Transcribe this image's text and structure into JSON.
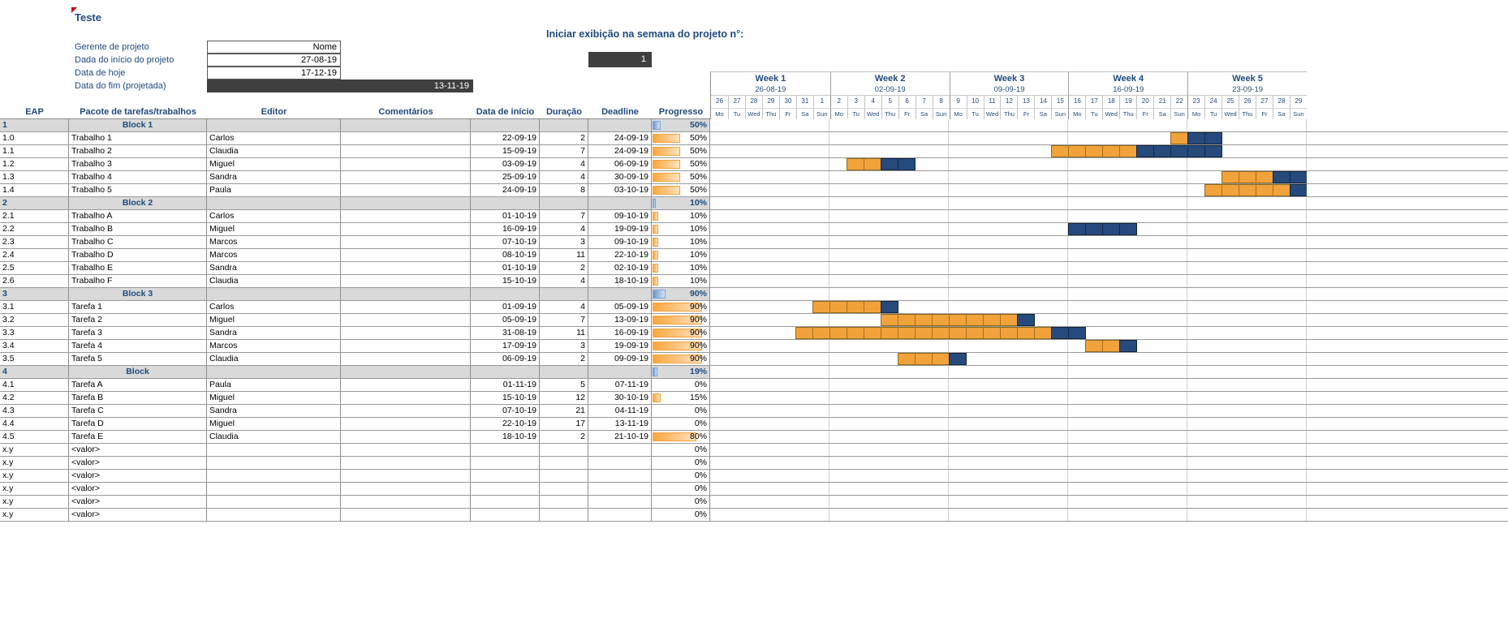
{
  "title": "Teste",
  "form": {
    "rows": [
      {
        "label": "Gerente de projeto",
        "value": "Nome"
      },
      {
        "label": "Dada do início do projeto",
        "value": "27-08-19"
      },
      {
        "label": "Data de hoje",
        "value": "17-12-19"
      },
      {
        "label": "Data do fim (projetada)",
        "value": "13-11-19"
      }
    ]
  },
  "week_control": {
    "label": "Iniciar exibição na semana do projeto n°:",
    "value": "1"
  },
  "columns": [
    "EAP",
    "Pacote de tarefas/trabalhos",
    "Editor",
    "Comentários",
    "Data de início",
    "Duração",
    "Deadline",
    "Progresso"
  ],
  "gantt": {
    "weeks": [
      {
        "label": "Week 1",
        "date": "26-08-19"
      },
      {
        "label": "Week 2",
        "date": "02-09-19"
      },
      {
        "label": "Week 3",
        "date": "09-09-19"
      },
      {
        "label": "Week 4",
        "date": "16-09-19"
      },
      {
        "label": "Week 5",
        "date": "23-09-19"
      }
    ],
    "day_numbers": [
      26,
      27,
      28,
      29,
      30,
      31,
      1,
      2,
      3,
      4,
      5,
      6,
      7,
      8,
      9,
      10,
      11,
      12,
      13,
      14,
      15,
      16,
      17,
      18,
      19,
      20,
      21,
      22,
      23,
      24,
      25,
      26,
      27,
      28,
      29
    ],
    "day_names": [
      "Mo",
      "Tu",
      "Wed",
      "Thu",
      "Fr",
      "Sa",
      "Sun",
      "Mo",
      "Tu",
      "Wed",
      "Thu",
      "Fr",
      "Sa",
      "Sun",
      "Mo",
      "Tu",
      "Wed",
      "Thu",
      "Fr",
      "Sa",
      "Sun",
      "Mo",
      "Tu",
      "Wed",
      "Thu",
      "Fr",
      "Sa",
      "Sun",
      "Mo",
      "Tu",
      "Wed",
      "Thu",
      "Fr",
      "Sa",
      "Sun"
    ]
  },
  "rows": [
    {
      "type": "block",
      "eap": "1",
      "task": "Block 1",
      "progress": "50%",
      "pct": 50
    },
    {
      "type": "task",
      "eap": "1.0",
      "task": "Trabalho 1",
      "editor": "Carlos",
      "comment": "",
      "start": "22-09-19",
      "duration": "2",
      "deadline": "24-09-19",
      "progress": "50%",
      "pct": 50,
      "bar": {
        "start": 27,
        "orange": 1,
        "blue": 2
      }
    },
    {
      "type": "task",
      "eap": "1.1",
      "task": "Trabalho 2",
      "editor": "Claudia",
      "comment": "",
      "start": "15-09-19",
      "duration": "7",
      "deadline": "24-09-19",
      "progress": "50%",
      "pct": 50,
      "bar": {
        "start": 20,
        "orange": 5,
        "blue": 5
      }
    },
    {
      "type": "task",
      "eap": "1.2",
      "task": "Trabalho 3",
      "editor": "Miguel",
      "comment": "",
      "start": "03-09-19",
      "duration": "4",
      "deadline": "06-09-19",
      "progress": "50%",
      "pct": 50,
      "bar": {
        "start": 8,
        "orange": 2,
        "blue": 2
      }
    },
    {
      "type": "task",
      "eap": "1.3",
      "task": "Trabalho 4",
      "editor": "Sandra",
      "comment": "",
      "start": "25-09-19",
      "duration": "4",
      "deadline": "30-09-19",
      "progress": "50%",
      "pct": 50,
      "bar": {
        "start": 30,
        "orange": 3,
        "blue": 3
      }
    },
    {
      "type": "task",
      "eap": "1.4",
      "task": "Trabalho 5",
      "editor": "Paula",
      "comment": "",
      "start": "24-09-19",
      "duration": "8",
      "deadline": "03-10-19",
      "progress": "50%",
      "pct": 50,
      "bar": {
        "start": 29,
        "orange": 5,
        "blue": 5
      }
    },
    {
      "type": "block",
      "eap": "2",
      "task": "Block 2",
      "progress": "10%",
      "pct": 10
    },
    {
      "type": "task",
      "eap": "2.1",
      "task": "Trabalho A",
      "editor": "Carlos",
      "comment": "",
      "start": "01-10-19",
      "duration": "7",
      "deadline": "09-10-19",
      "progress": "10%",
      "pct": 10,
      "bar": {
        "start": 36,
        "orange": 0,
        "blue": 9
      }
    },
    {
      "type": "task",
      "eap": "2.2",
      "task": "Trabalho B",
      "editor": "Miguel",
      "comment": "",
      "start": "16-09-19",
      "duration": "4",
      "deadline": "19-09-19",
      "progress": "10%",
      "pct": 10,
      "bar": {
        "start": 21,
        "orange": 0,
        "blue": 4
      }
    },
    {
      "type": "task",
      "eap": "2.3",
      "task": "Trabalho C",
      "editor": "Marcos",
      "comment": "",
      "start": "07-10-19",
      "duration": "3",
      "deadline": "09-10-19",
      "progress": "10%",
      "pct": 10,
      "bar": {
        "start": 42,
        "orange": 0,
        "blue": 3
      }
    },
    {
      "type": "task",
      "eap": "2.4",
      "task": "Trabalho D",
      "editor": "Marcos",
      "comment": "",
      "start": "08-10-19",
      "duration": "11",
      "deadline": "22-10-19",
      "progress": "10%",
      "pct": 10,
      "bar": {
        "start": 43,
        "orange": 1,
        "blue": 14
      }
    },
    {
      "type": "task",
      "eap": "2.5",
      "task": "Trabalho E",
      "editor": "Sandra",
      "comment": "",
      "start": "01-10-19",
      "duration": "2",
      "deadline": "02-10-19",
      "progress": "10%",
      "pct": 10,
      "bar": {
        "start": 36,
        "orange": 0,
        "blue": 2
      }
    },
    {
      "type": "task",
      "eap": "2.6",
      "task": "Trabalho F",
      "editor": "Claudia",
      "comment": "",
      "start": "15-10-19",
      "duration": "4",
      "deadline": "18-10-19",
      "progress": "10%",
      "pct": 10,
      "bar": {
        "start": 50,
        "orange": 0,
        "blue": 4
      }
    },
    {
      "type": "block",
      "eap": "3",
      "task": "Block 3",
      "progress": "90%",
      "pct": 90
    },
    {
      "type": "task",
      "eap": "3.1",
      "task": "Tarefa 1",
      "editor": "Carlos",
      "comment": "",
      "start": "01-09-19",
      "duration": "4",
      "deadline": "05-09-19",
      "progress": "90%",
      "pct": 90,
      "bar": {
        "start": 6,
        "orange": 4,
        "blue": 1
      }
    },
    {
      "type": "task",
      "eap": "3.2",
      "task": "Tarefa 2",
      "editor": "Miguel",
      "comment": "",
      "start": "05-09-19",
      "duration": "7",
      "deadline": "13-09-19",
      "progress": "90%",
      "pct": 90,
      "bar": {
        "start": 10,
        "orange": 8,
        "blue": 1
      }
    },
    {
      "type": "task",
      "eap": "3.3",
      "task": "Tarefa 3",
      "editor": "Sandra",
      "comment": "",
      "start": "31-08-19",
      "duration": "11",
      "deadline": "16-09-19",
      "progress": "90%",
      "pct": 90,
      "bar": {
        "start": 5,
        "orange": 15,
        "blue": 2
      }
    },
    {
      "type": "task",
      "eap": "3.4",
      "task": "Tarefa 4",
      "editor": "Marcos",
      "comment": "",
      "start": "17-09-19",
      "duration": "3",
      "deadline": "19-09-19",
      "progress": "90%",
      "pct": 90,
      "bar": {
        "start": 22,
        "orange": 2,
        "blue": 1
      }
    },
    {
      "type": "task",
      "eap": "3.5",
      "task": "Tarefa 5",
      "editor": "Claudia",
      "comment": "",
      "start": "06-09-19",
      "duration": "2",
      "deadline": "09-09-19",
      "progress": "90%",
      "pct": 90,
      "bar": {
        "start": 11,
        "orange": 3,
        "blue": 1
      }
    },
    {
      "type": "block",
      "eap": "4",
      "task": "Block",
      "progress": "19%",
      "pct": 19
    },
    {
      "type": "task",
      "eap": "4.1",
      "task": "Tarefa A",
      "editor": "Paula",
      "comment": "",
      "start": "01-11-19",
      "duration": "5",
      "deadline": "07-11-19",
      "progress": "0%",
      "pct": 0,
      "bar": {
        "start": 67,
        "orange": 0,
        "blue": 7
      }
    },
    {
      "type": "task",
      "eap": "4.2",
      "task": "Tarefa B",
      "editor": "Miguel",
      "comment": "",
      "start": "15-10-19",
      "duration": "12",
      "deadline": "30-10-19",
      "progress": "15%",
      "pct": 15,
      "bar": {
        "start": 50,
        "orange": 2,
        "blue": 14
      }
    },
    {
      "type": "task",
      "eap": "4.3",
      "task": "Tarefa C",
      "editor": "Sandra",
      "comment": "",
      "start": "07-10-19",
      "duration": "21",
      "deadline": "04-11-19",
      "progress": "0%",
      "pct": 0,
      "bar": {
        "start": 42,
        "orange": 0,
        "blue": 29
      }
    },
    {
      "type": "task",
      "eap": "4.4",
      "task": "Tarefa D",
      "editor": "Miguel",
      "comment": "",
      "start": "22-10-19",
      "duration": "17",
      "deadline": "13-11-19",
      "progress": "0%",
      "pct": 0,
      "bar": {
        "start": 57,
        "orange": 0,
        "blue": 23
      }
    },
    {
      "type": "task",
      "eap": "4.5",
      "task": "Tarefa E",
      "editor": "Claudia",
      "comment": "",
      "start": "18-10-19",
      "duration": "2",
      "deadline": "21-10-19",
      "progress": "80%",
      "pct": 80,
      "bar": {
        "start": 53,
        "orange": 3,
        "blue": 1
      }
    },
    {
      "type": "empty",
      "eap": "x.y",
      "task": "<valor>",
      "progress": "0%",
      "pct": 0
    },
    {
      "type": "empty",
      "eap": "x.y",
      "task": "<valor>",
      "progress": "0%",
      "pct": 0
    },
    {
      "type": "empty",
      "eap": "x.y",
      "task": "<valor>",
      "progress": "0%",
      "pct": 0
    },
    {
      "type": "empty",
      "eap": "x.y",
      "task": "<valor>",
      "progress": "0%",
      "pct": 0
    },
    {
      "type": "empty",
      "eap": "x.y",
      "task": "<valor>",
      "progress": "0%",
      "pct": 0
    },
    {
      "type": "empty",
      "eap": "x.y",
      "task": "<valor>",
      "progress": "0%",
      "pct": 0
    }
  ],
  "colors": {
    "accent_blue": "#1F497D",
    "bar_orange": "#F2A23B",
    "bar_dark_blue": "#274A7D",
    "block_row_bg": "#D9D9D9",
    "dark_box": "#3F3F3F"
  }
}
